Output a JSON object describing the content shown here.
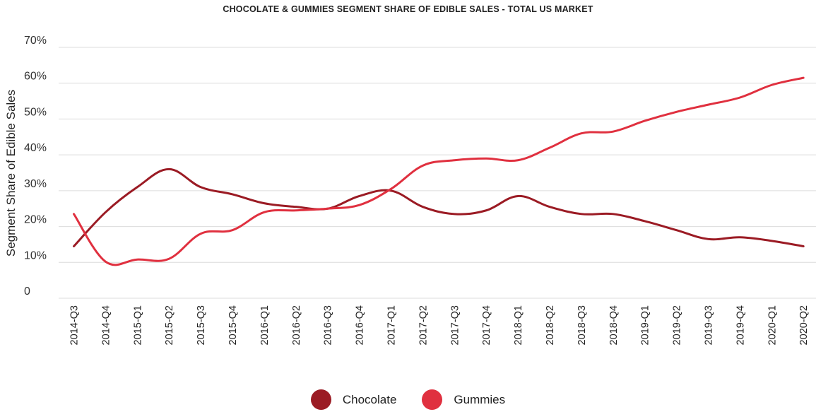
{
  "chart_data": {
    "type": "line",
    "title": "CHOCOLATE & GUMMIES SEGMENT SHARE OF EDIBLE SALES - TOTAL US MARKET",
    "ylabel": "Segment Share of Edible Sales",
    "xlabel": "",
    "ylim": [
      0,
      70
    ],
    "y_ticks": [
      "0",
      "10%",
      "20%",
      "30%",
      "40%",
      "50%",
      "60%",
      "70%"
    ],
    "y_tick_values": [
      0,
      10,
      20,
      30,
      40,
      50,
      60,
      70
    ],
    "grid": "horizontal",
    "legend_position": "bottom",
    "categories": [
      "2014-Q3",
      "2014-Q4",
      "2015-Q1",
      "2015-Q2",
      "2015-Q3",
      "2015-Q4",
      "2016-Q1",
      "2016-Q2",
      "2016-Q3",
      "2016-Q4",
      "2017-Q1",
      "2017-Q2",
      "2017-Q3",
      "2017-Q4",
      "2018-Q1",
      "2018-Q2",
      "2018-Q3",
      "2018-Q4",
      "2019-Q1",
      "2019-Q2",
      "2019-Q3",
      "2019-Q4",
      "2020-Q1",
      "2020-Q2"
    ],
    "series": [
      {
        "name": "Chocolate",
        "color": "#9b1b24",
        "values": [
          14.5,
          24,
          31,
          36,
          31,
          29,
          26.5,
          25.5,
          25,
          28.5,
          30,
          25.5,
          23.5,
          24.5,
          28.5,
          25.5,
          23.5,
          23.5,
          21.5,
          19,
          16.5,
          17,
          16,
          14.5
        ]
      },
      {
        "name": "Gummies",
        "color": "#e0303f",
        "values": [
          23.5,
          10.2,
          10.8,
          11,
          18,
          19,
          24,
          24.5,
          25,
          26,
          30.5,
          37,
          38.5,
          39,
          38.5,
          42,
          46,
          46.5,
          49.5,
          52,
          54,
          56,
          59.5,
          61.5
        ]
      }
    ]
  }
}
